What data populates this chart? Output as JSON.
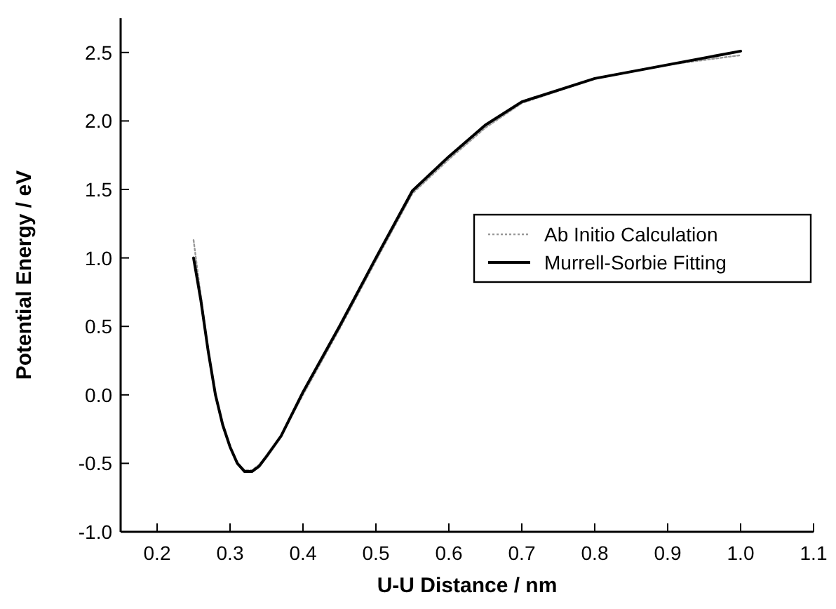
{
  "chart_data": {
    "type": "line",
    "xlabel": "U-U Distance / nm",
    "ylabel": "Potential Energy / eV",
    "xlim": [
      0.15,
      1.1
    ],
    "ylim": [
      -1.0,
      2.75
    ],
    "xticks": [
      0.2,
      0.3,
      0.4,
      0.5,
      0.6,
      0.7,
      0.8,
      0.9,
      {
        "value": 1.0,
        "label": "1.0"
      },
      1.1
    ],
    "yticks": [
      {
        "value": -1.0,
        "label": "-1.0"
      },
      -0.5,
      {
        "value": 0.0,
        "label": "0.0"
      },
      0.5,
      {
        "value": 1.0,
        "label": "1.0"
      },
      1.5,
      {
        "value": 2.0,
        "label": "2.0"
      },
      2.5
    ],
    "legend": "right",
    "grid": false,
    "series": [
      {
        "name": "Ab Initio Calculation",
        "color": "#999999",
        "line_style": "dotted",
        "x": [
          0.25,
          0.26,
          0.27,
          0.28,
          0.29,
          0.3,
          0.31,
          0.32,
          0.33,
          0.34,
          0.35,
          0.37,
          0.4,
          0.45,
          0.5,
          0.55,
          0.6,
          0.65,
          0.7,
          0.8,
          0.9,
          1.0
        ],
        "values": [
          1.13,
          0.72,
          0.33,
          0.0,
          -0.22,
          -0.38,
          -0.5,
          -0.55,
          -0.55,
          -0.51,
          -0.44,
          -0.3,
          0.0,
          0.48,
          0.98,
          1.47,
          1.72,
          1.95,
          2.13,
          2.31,
          2.41,
          2.48
        ]
      },
      {
        "name": "Murrell-Sorbie Fitting",
        "color": "#000000",
        "line_style": "solid",
        "x": [
          0.25,
          0.26,
          0.27,
          0.28,
          0.29,
          0.3,
          0.31,
          0.32,
          0.33,
          0.34,
          0.35,
          0.37,
          0.4,
          0.45,
          0.5,
          0.55,
          0.6,
          0.65,
          0.7,
          0.8,
          0.9,
          1.0
        ],
        "values": [
          1.0,
          0.69,
          0.32,
          0.0,
          -0.22,
          -0.38,
          -0.5,
          -0.56,
          -0.56,
          -0.52,
          -0.45,
          -0.3,
          0.02,
          0.5,
          1.0,
          1.49,
          1.74,
          1.97,
          2.14,
          2.31,
          2.41,
          2.51
        ]
      }
    ]
  }
}
